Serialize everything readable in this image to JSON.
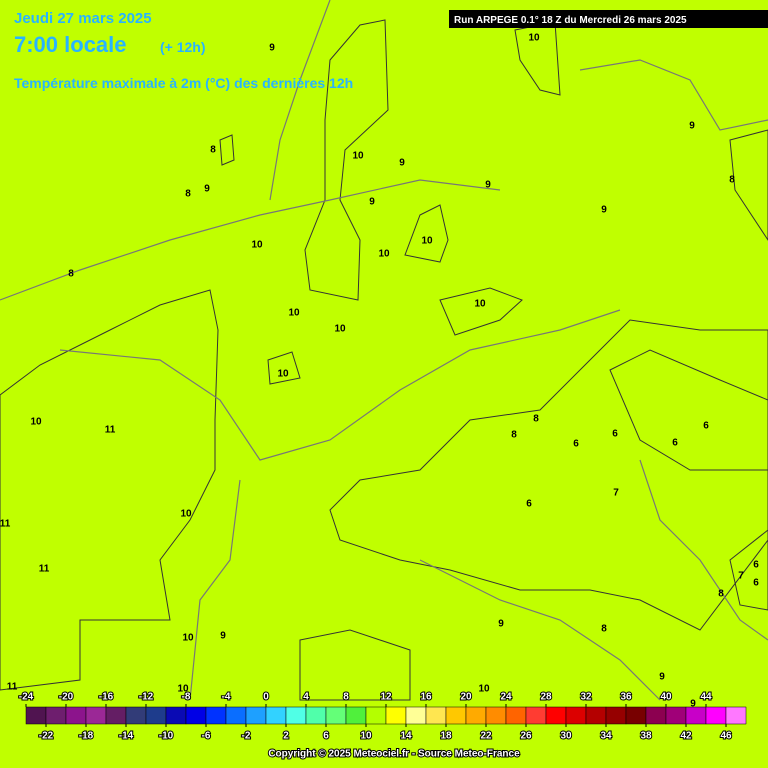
{
  "header": {
    "date": "Jeudi 27 mars 2025",
    "time": "7:00 locale",
    "lead": "(+ 12h)",
    "subtitle": "Température maximale à 2m (°C) des dernières 12h",
    "run": "Run ARPEGE 0.1° 18 Z du Mercredi 26 mars 2025"
  },
  "contour_labels": [
    "9",
    "10",
    "9",
    "8",
    "8",
    "10",
    "9",
    "8",
    "9",
    "9",
    "9",
    "9",
    "10",
    "10",
    "10",
    "8",
    "10",
    "10",
    "10",
    "10",
    "10",
    "11",
    "8",
    "8",
    "6",
    "6",
    "6",
    "6",
    "7",
    "6",
    "10",
    "11",
    "11",
    "6",
    "7",
    "6",
    "8",
    "9",
    "8",
    "10",
    "9",
    "9",
    "11",
    "10",
    "10",
    "9"
  ],
  "colorbar": {
    "ticks": [
      -24,
      -22,
      -20,
      -18,
      -16,
      -14,
      -12,
      -10,
      -8,
      -6,
      -4,
      -2,
      0,
      2,
      4,
      6,
      8,
      10,
      12,
      14,
      16,
      18,
      20,
      22,
      24,
      26,
      28,
      30,
      32,
      34,
      36,
      38,
      40,
      42,
      44,
      46
    ],
    "colors": [
      "#501450",
      "#6e1e6e",
      "#8c148c",
      "#9b2896",
      "#641e64",
      "#323c78",
      "#1e3c8c",
      "#0a0ab4",
      "#0000e6",
      "#0032ff",
      "#0a6eff",
      "#1ea0ff",
      "#32d2ff",
      "#50ffe6",
      "#50ffaa",
      "#64ff78",
      "#50f03c",
      "#b4ff00",
      "#ffff00",
      "#ffff96",
      "#ffe650",
      "#ffc800",
      "#ffaa00",
      "#ff8c00",
      "#ff6400",
      "#ff3c32",
      "#ff0000",
      "#dc0000",
      "#b40000",
      "#960000",
      "#780000",
      "#8c0050",
      "#a00078",
      "#c800c8",
      "#ff00ff",
      "#ff78ff"
    ]
  },
  "footer": "Copyright © 2025 Meteociel.fr - Source Meteo-France"
}
